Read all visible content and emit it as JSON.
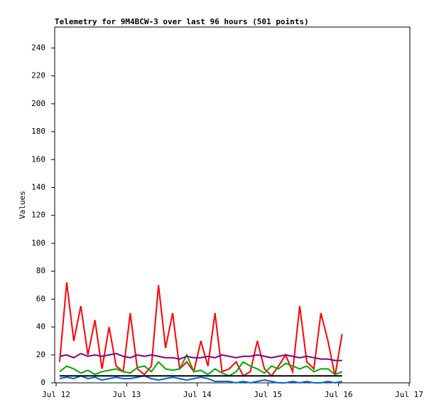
{
  "chart_data": {
    "type": "line",
    "title": "Telemetry for 9M4BCW-3 over last 96 hours (501 points)",
    "y_label": "Values",
    "x": [
      12.05,
      12.15,
      12.25,
      12.35,
      12.45,
      12.55,
      12.65,
      12.75,
      12.85,
      12.95,
      13.05,
      13.15,
      13.25,
      13.35,
      13.45,
      13.55,
      13.65,
      13.75,
      13.85,
      13.95,
      14.05,
      14.15,
      14.25,
      14.35,
      14.45,
      14.55,
      14.65,
      14.75,
      14.85,
      14.95,
      15.05,
      15.15,
      15.25,
      15.35,
      15.45,
      15.55,
      15.65,
      15.75,
      15.85,
      15.95,
      16.05
    ],
    "series": [
      {
        "color": "#ff0000",
        "values": [
          15,
          72,
          30,
          55,
          20,
          45,
          10,
          40,
          12,
          8,
          50,
          10,
          6,
          12,
          70,
          25,
          50,
          10,
          15,
          8,
          30,
          12,
          50,
          8,
          10,
          15,
          5,
          8,
          30,
          10,
          5,
          12,
          20,
          8,
          55,
          15,
          10,
          50,
          30,
          5,
          35
        ]
      },
      {
        "color": "#00aa00",
        "values": [
          8,
          12,
          10,
          7,
          9,
          6,
          8,
          9,
          10,
          8,
          7,
          11,
          12,
          8,
          15,
          10,
          9,
          10,
          20,
          8,
          9,
          6,
          10,
          7,
          5,
          8,
          15,
          12,
          10,
          7,
          12,
          10,
          14,
          12,
          10,
          12,
          8,
          10,
          10,
          6,
          8
        ]
      },
      {
        "color": "#800080",
        "values": [
          19,
          20,
          18,
          21,
          19,
          20,
          19,
          20,
          21,
          19,
          18,
          20,
          19,
          20,
          19,
          18,
          18,
          17,
          19,
          18,
          18,
          19,
          18,
          20,
          19,
          18,
          19,
          19,
          20,
          19,
          18,
          19,
          20,
          19,
          18,
          19,
          18,
          17,
          17,
          16,
          16
        ]
      },
      {
        "color": "#0066cc",
        "values": [
          3,
          4,
          3,
          5,
          3,
          4,
          2,
          3,
          4,
          3,
          3,
          4,
          5,
          3,
          2,
          3,
          4,
          3,
          2,
          3,
          4,
          3,
          1,
          1,
          1,
          0,
          1,
          0,
          1,
          2,
          1,
          0,
          0,
          1,
          0,
          1,
          0,
          0,
          1,
          0,
          1
        ]
      },
      {
        "color": "#000000",
        "values": [
          5,
          5,
          5,
          5,
          5,
          5,
          5,
          5,
          5,
          5,
          5,
          5,
          5,
          5,
          5,
          5,
          5,
          5,
          5,
          5,
          5,
          5,
          5,
          5,
          5,
          5,
          5,
          5,
          5,
          5,
          5,
          5,
          5,
          5,
          5,
          5,
          5,
          5,
          5,
          5,
          5
        ]
      }
    ],
    "xlim": [
      12,
      17
    ],
    "xticks": [
      {
        "value": 12,
        "label": "Jul 12"
      },
      {
        "value": 13,
        "label": "Jul 13"
      },
      {
        "value": 14,
        "label": "Jul 14"
      },
      {
        "value": 15,
        "label": "Jul 15"
      },
      {
        "value": 16,
        "label": "Jul 16"
      },
      {
        "value": 17,
        "label": "Jul 17"
      }
    ],
    "ylim": [
      0,
      255
    ],
    "yticks": [
      0,
      20,
      40,
      60,
      80,
      100,
      120,
      140,
      160,
      180,
      200,
      220,
      240
    ]
  }
}
